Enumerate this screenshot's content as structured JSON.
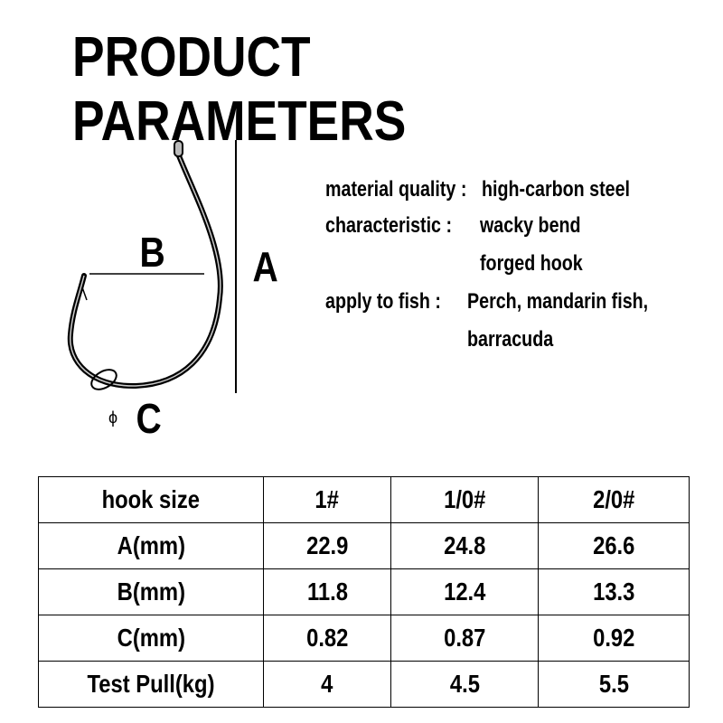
{
  "title": "PRODUCT PARAMETERS",
  "diagram": {
    "label_a": "A",
    "label_b": "B",
    "label_c": "C",
    "phi": "ϕ"
  },
  "specs": [
    {
      "label": "material quality :",
      "value": "high-carbon steel"
    },
    {
      "label": "characteristic :",
      "value": "wacky bend",
      "value2": "forged hook"
    },
    {
      "label": "apply to fish :",
      "value": "Perch, mandarin fish,",
      "value2": "barracuda"
    }
  ],
  "table": {
    "header": [
      "hook size",
      "1#",
      "1/0#",
      "2/0#"
    ],
    "rows": [
      [
        "A(mm)",
        "22.9",
        "24.8",
        "26.6"
      ],
      [
        "B(mm)",
        "11.8",
        "12.4",
        "13.3"
      ],
      [
        "C(mm)",
        "0.82",
        "0.87",
        "0.92"
      ],
      [
        "Test Pull(kg)",
        "4",
        "4.5",
        "5.5"
      ]
    ]
  }
}
